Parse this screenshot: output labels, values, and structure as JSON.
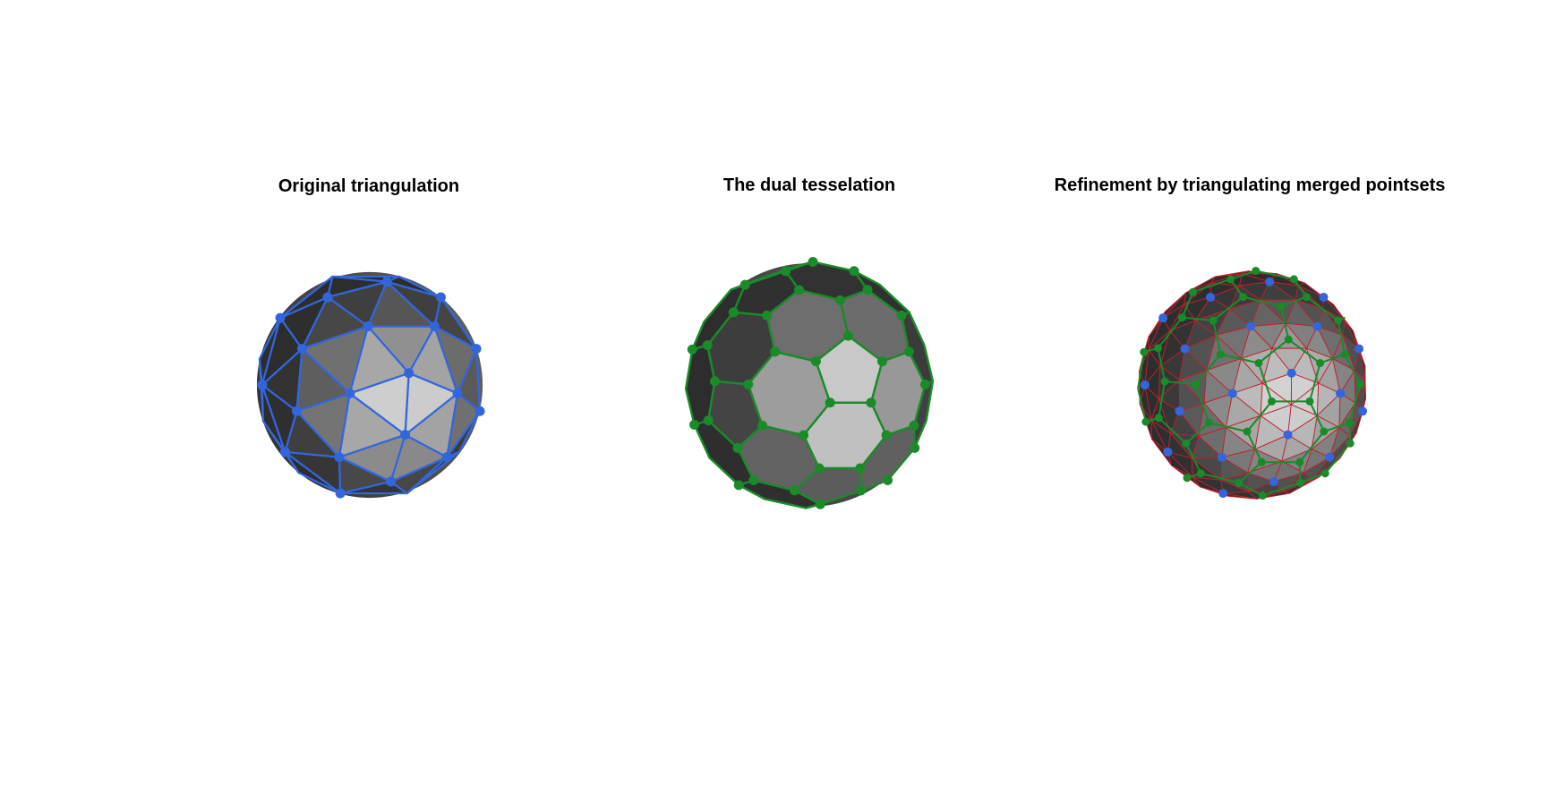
{
  "figure": {
    "panels": [
      {
        "id": "original",
        "title": "Original triangulation",
        "mesh": "triangulation",
        "vertex_color": "#3366dd",
        "edge_color": "#3366dd"
      },
      {
        "id": "dual",
        "title": "The dual tesselation",
        "mesh": "dual-tessellation",
        "vertex_color": "#1a8a2a",
        "edge_color": "#1a8a2a"
      },
      {
        "id": "refined",
        "title": "Refinement by triangulating merged pointsets",
        "mesh": "refined-triangulation",
        "vertex_color": "#3366dd",
        "dual_vertex_color": "#1a8a2a",
        "edge_color": "#c0202a"
      }
    ]
  },
  "colors": {
    "background": "#ffffff",
    "sphere_dark": "#3a3a3a",
    "sphere_light": "#c8c8c8"
  }
}
